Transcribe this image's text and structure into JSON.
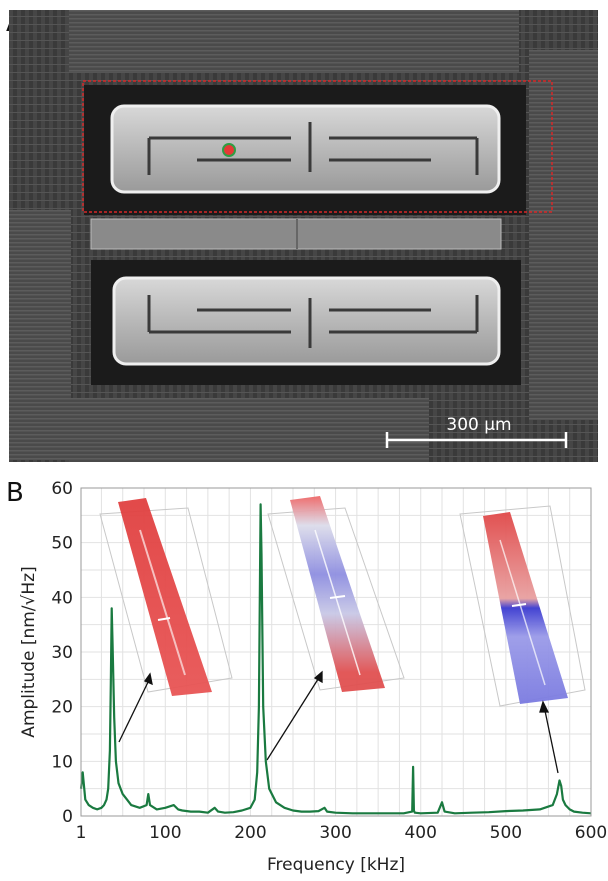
{
  "panel_a": {
    "letter": "A",
    "scale_bar_label": "300 µm",
    "colors": {
      "roi_box": "#d62828",
      "marker_fill": "#e53935",
      "marker_ring": "#2e9e44",
      "scale_bar": "#ffffff"
    }
  },
  "panel_b": {
    "letter": "B"
  },
  "chart_data": {
    "type": "line",
    "xlabel": "Frequency [kHz]",
    "ylabel": "Amplitude [nm/√Hz]",
    "xlim": [
      1,
      600
    ],
    "ylim": [
      0,
      60
    ],
    "x_ticks": [
      1,
      100,
      200,
      300,
      400,
      500,
      600
    ],
    "y_ticks": [
      0,
      10,
      20,
      30,
      40,
      50,
      60
    ],
    "grid": true,
    "line_color": "#1a7a40",
    "series": [
      {
        "x": [
          1,
          3,
          6,
          10,
          15,
          20,
          25,
          28,
          31,
          33,
          35,
          36,
          37,
          38,
          40,
          42,
          45,
          50,
          55,
          60,
          70,
          78,
          80,
          82,
          90,
          100,
          110,
          115,
          120,
          130,
          140,
          150,
          158,
          162,
          170,
          180,
          190,
          200,
          205,
          208,
          210,
          212,
          213,
          215,
          218,
          222,
          230,
          240,
          250,
          260,
          270,
          280,
          287,
          290,
          300,
          320,
          340,
          360,
          380,
          390,
          391,
          392,
          393,
          400,
          420,
          425,
          428,
          440,
          460,
          480,
          500,
          520,
          540,
          555,
          560,
          563,
          565,
          567,
          570,
          575,
          580,
          590,
          600
        ],
        "values": [
          5,
          8,
          3,
          2,
          1.5,
          1.2,
          1.5,
          2,
          3,
          5,
          12,
          24,
          38,
          32,
          18,
          10,
          6,
          4,
          3,
          2,
          1.5,
          2,
          4,
          2,
          1.2,
          1.5,
          2,
          1.2,
          1,
          0.8,
          0.8,
          0.6,
          1.5,
          0.8,
          0.6,
          0.7,
          1,
          1.5,
          3,
          8,
          20,
          57,
          48,
          20,
          10,
          5,
          2.5,
          1.5,
          1,
          0.8,
          0.8,
          0.9,
          1.5,
          0.8,
          0.6,
          0.5,
          0.5,
          0.5,
          0.5,
          0.8,
          9,
          1,
          0.6,
          0.5,
          0.6,
          2.5,
          0.8,
          0.5,
          0.6,
          0.7,
          0.9,
          1,
          1.2,
          2,
          4,
          6.5,
          5.5,
          3,
          2,
          1.2,
          0.8,
          0.6,
          0.5
        ]
      }
    ]
  }
}
